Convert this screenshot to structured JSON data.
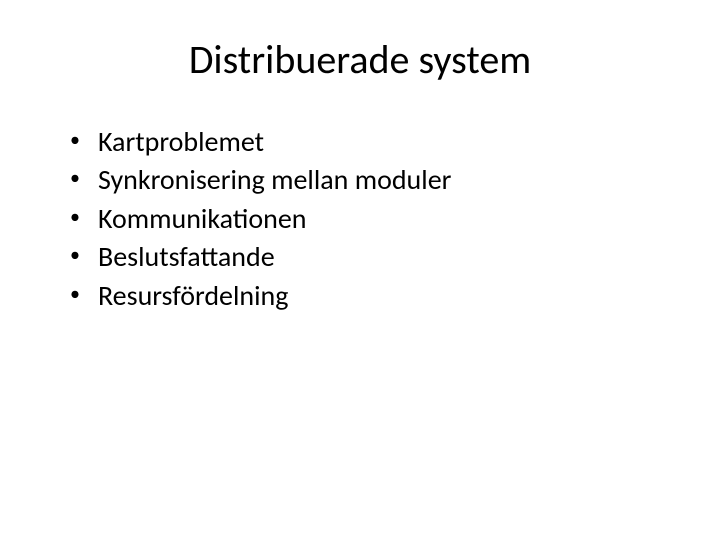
{
  "slide": {
    "title": "Distribuerade system",
    "bullets": [
      "Kartproblemet",
      "Synkronisering mellan moduler",
      "Kommunikationen",
      "Beslutsfattande",
      "Resursfördelning"
    ],
    "title_fontsize": 40,
    "bullet_fontsize": 28,
    "text_color": "#000000",
    "background_color": "#ffffff",
    "bullet_marker": "•"
  }
}
